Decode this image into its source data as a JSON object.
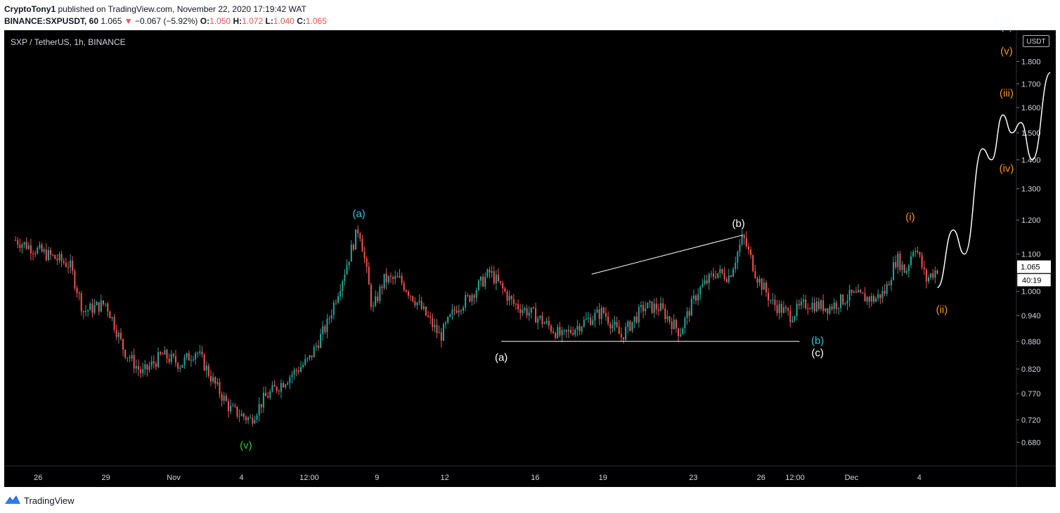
{
  "header": {
    "author": "CryptoTony1",
    "published_text": "published on TradingView.com, November 22, 2020 17:19:42 WAT",
    "symbol_code": "BINANCE:SXPUSDT, 60",
    "last_price": "1.065",
    "change": "−0.067 (−5.92%)",
    "open_label": "O:",
    "open": "1.050",
    "high_label": "H:",
    "high": "1.072",
    "low_label": "L:",
    "low": "1.040",
    "close_label": "C:",
    "close": "1.065"
  },
  "chart_title": "SXP / TetherUS, 1h, BINANCE",
  "unit_badge": "USDT",
  "current_price_tag": "1.065",
  "countdown_tag": "40:19",
  "footer": {
    "brand": "TradingView"
  },
  "colors": {
    "background": "#000000",
    "up_candle": "#26a69a",
    "down_candle": "#ef5350",
    "cyan_label": "#26c6da",
    "orange_label": "#f7931a",
    "green_label": "#29d12f",
    "white_label": "#ffffff"
  },
  "chart_data": {
    "type": "candlestick",
    "y_scale": "log",
    "ylim": [
      0.64,
      1.95
    ],
    "y_ticks": [
      "1.800",
      "1.700",
      "1.600",
      "1.500",
      "1.400",
      "1.300",
      "1.200",
      "1.100",
      "1.000",
      "0.940",
      "0.880",
      "0.820",
      "0.770",
      "0.720",
      "0.680"
    ],
    "x_tick_labels": [
      "26",
      "29",
      "Nov",
      "4",
      "12:00",
      "9",
      "12",
      "16",
      "19",
      "23",
      "26",
      "12:00",
      "Dec",
      "4"
    ],
    "xlim_days": [
      -0.5,
      44.3
    ],
    "x_ticks_days": [
      1,
      4,
      7,
      10,
      13,
      16,
      19,
      23,
      26,
      30,
      33,
      34.5,
      37,
      40
    ],
    "price_path": [
      [
        0,
        1.14
      ],
      [
        1,
        1.11
      ],
      [
        2.4,
        1.07
      ],
      [
        3,
        0.95
      ],
      [
        4,
        0.97
      ],
      [
        4.8,
        0.86
      ],
      [
        5.6,
        0.81
      ],
      [
        6.5,
        0.85
      ],
      [
        7.3,
        0.83
      ],
      [
        8,
        0.86
      ],
      [
        8.8,
        0.79
      ],
      [
        9.5,
        0.74
      ],
      [
        10.4,
        0.72
      ],
      [
        11,
        0.76
      ],
      [
        12,
        0.8
      ],
      [
        13,
        0.84
      ],
      [
        13.8,
        0.92
      ],
      [
        14.5,
        1.04
      ],
      [
        15.2,
        1.18
      ],
      [
        15.8,
        0.95
      ],
      [
        16.3,
        1.03
      ],
      [
        17,
        1.03
      ],
      [
        17.8,
        0.97
      ],
      [
        18.8,
        0.89
      ],
      [
        19.5,
        0.96
      ],
      [
        20,
        0.98
      ],
      [
        21,
        1.05
      ],
      [
        22,
        0.97
      ],
      [
        23,
        0.94
      ],
      [
        24.2,
        0.89
      ],
      [
        25,
        0.92
      ],
      [
        26,
        0.95
      ],
      [
        26.8,
        0.89
      ],
      [
        27.8,
        0.96
      ],
      [
        28.5,
        0.96
      ],
      [
        29.4,
        0.9
      ],
      [
        30.2,
        1.0
      ],
      [
        31,
        1.05
      ],
      [
        31.6,
        1.04
      ],
      [
        32.2,
        1.15
      ],
      [
        32.8,
        1.04
      ],
      [
        33.5,
        0.97
      ],
      [
        34.3,
        0.94
      ],
      [
        35,
        0.97
      ],
      [
        36,
        0.96
      ],
      [
        37,
        0.99
      ],
      [
        38,
        0.98
      ],
      [
        38.5,
        1.0
      ],
      [
        39,
        1.09
      ],
      [
        39.4,
        1.05
      ],
      [
        39.8,
        1.13
      ],
      [
        40.3,
        1.03
      ],
      [
        40.8,
        1.06
      ]
    ],
    "projection_path": [
      [
        40.8,
        1.01
      ],
      [
        41.5,
        1.17
      ],
      [
        42,
        1.1
      ],
      [
        42.8,
        1.44
      ],
      [
        43.2,
        1.4
      ],
      [
        43.7,
        1.57
      ],
      [
        44.1,
        1.5
      ],
      [
        44.5,
        1.54
      ],
      [
        45,
        1.4
      ],
      [
        45.8,
        1.75
      ]
    ],
    "trendlines": [
      {
        "from": [
          25.5,
          1.045
        ],
        "to": [
          32.2,
          1.155
        ]
      },
      {
        "from": [
          21.5,
          0.88
        ],
        "to": [
          34.7,
          0.88
        ]
      }
    ],
    "wave_labels": [
      {
        "text": "(a)",
        "x": 15.2,
        "y": 1.22,
        "color": "cyan"
      },
      {
        "text": "(b)",
        "x": 32.0,
        "y": 1.19,
        "color": "white"
      },
      {
        "text": "(a)",
        "x": 21.5,
        "y": 0.845,
        "color": "white"
      },
      {
        "text": "(b)",
        "x": 35.5,
        "y": 0.882,
        "color": "cyan"
      },
      {
        "text": "(c)",
        "x": 35.5,
        "y": 0.855,
        "color": "white"
      },
      {
        "text": "(v)",
        "x": 10.2,
        "y": 0.675,
        "color": "green"
      },
      {
        "text": "(i)",
        "x": 39.6,
        "y": 1.21,
        "color": "orange"
      },
      {
        "text": "(ii)",
        "x": 41.0,
        "y": 0.955,
        "color": "orange"
      },
      {
        "text": "(iii)",
        "x": 44.0,
        "y": 1.66,
        "color": "orange"
      },
      {
        "text": "(iv)",
        "x": 45.0,
        "y": 1.37,
        "color": "orange"
      },
      {
        "text": "(c)",
        "x": 46.0,
        "y": 1.97,
        "color": "cyan"
      },
      {
        "text": "(v)",
        "x": 46.0,
        "y": 1.85,
        "color": "orange"
      }
    ]
  }
}
